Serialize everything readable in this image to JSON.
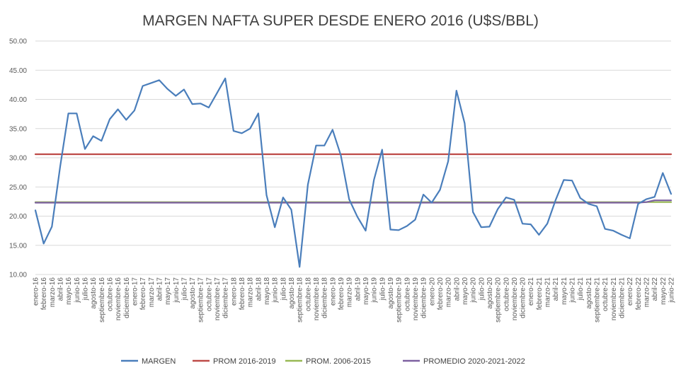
{
  "chart_data": {
    "type": "line",
    "title": "MARGEN NAFTA SUPER DESDE ENERO 2016 (U$S/BBL)",
    "xlabel": "",
    "ylabel": "",
    "ylim": [
      10,
      50
    ],
    "yticks": [
      "10.00",
      "15.00",
      "20.00",
      "25.00",
      "30.00",
      "35.00",
      "40.00",
      "45.00",
      "50.00"
    ],
    "grid": true,
    "legend_position": "bottom",
    "categories": [
      "enero-16",
      "febrero-16",
      "marzo-16",
      "abril-16",
      "mayo-16",
      "junio-16",
      "julio-16",
      "agosto-16",
      "septiembre-16",
      "octubre-16",
      "noviembre-16",
      "diciembre-16",
      "enero-17",
      "febrero-17",
      "marzo-17",
      "abril-17",
      "mayo-17",
      "junio-17",
      "julio-17",
      "agosto-17",
      "septiembre-17",
      "octubre-17",
      "noviembre-17",
      "diciembre-17",
      "enero-18",
      "febrero-18",
      "marzo-18",
      "abril-18",
      "mayo-18",
      "junio-18",
      "julio-18",
      "agosto-18",
      "septiembre-18",
      "octubre-18",
      "noviembre-18",
      "diciembre-18",
      "enero-19",
      "febrero-19",
      "marzo-19",
      "abril-19",
      "mayo-19",
      "junio-19",
      "julio-19",
      "agosto-19",
      "septiembre-19",
      "octubre-19",
      "noviembre-19",
      "diciembre-19",
      "enero-20",
      "febrero-20",
      "marzo-20",
      "abril-20",
      "mayo-20",
      "junio-20",
      "julio-20",
      "agosto-20",
      "septiembre-20",
      "octubre-20",
      "noviembre-20",
      "diciembre-20",
      "enero-21",
      "febrero-21",
      "marzo-21",
      "abril-21",
      "mayo-21",
      "junio-21",
      "julio-21",
      "agosto-21",
      "septiembre-21",
      "octubre-21",
      "noviembre-21",
      "diciembre-21",
      "enero-22",
      "febrero-22",
      "marzo-22",
      "abril-22",
      "mayo-22",
      "junio-22"
    ],
    "series": [
      {
        "name": "MARGEN",
        "color": "#4a7ebb",
        "values": [
          21.0,
          15.3,
          18.2,
          28.5,
          37.6,
          37.6,
          31.5,
          33.7,
          32.9,
          36.6,
          38.3,
          36.5,
          38.1,
          42.3,
          42.8,
          43.3,
          41.8,
          40.6,
          41.7,
          39.2,
          39.3,
          38.6,
          41.1,
          43.6,
          34.6,
          34.2,
          35.0,
          37.6,
          23.6,
          18.1,
          23.2,
          21.1,
          11.3,
          25.4,
          32.1,
          32.1,
          34.8,
          30.4,
          22.9,
          19.9,
          17.5,
          26.2,
          31.4,
          17.7,
          17.6,
          18.3,
          19.4,
          23.7,
          22.3,
          24.5,
          29.4,
          41.5,
          35.9,
          20.7,
          18.1,
          18.2,
          21.2,
          23.2,
          22.8,
          18.7,
          18.6,
          16.8,
          18.7,
          22.7,
          26.2,
          26.1,
          23.1,
          22.1,
          21.7,
          17.8,
          17.5,
          16.8,
          16.2,
          22.1,
          22.9,
          23.3,
          27.4,
          23.8
        ]
      },
      {
        "name": "PROM 2016-2019",
        "color": "#be4b48",
        "values": [
          30.6,
          30.6,
          30.6,
          30.6,
          30.6,
          30.6,
          30.6,
          30.6,
          30.6,
          30.6,
          30.6,
          30.6,
          30.6,
          30.6,
          30.6,
          30.6,
          30.6,
          30.6,
          30.6,
          30.6,
          30.6,
          30.6,
          30.6,
          30.6,
          30.6,
          30.6,
          30.6,
          30.6,
          30.6,
          30.6,
          30.6,
          30.6,
          30.6,
          30.6,
          30.6,
          30.6,
          30.6,
          30.6,
          30.6,
          30.6,
          30.6,
          30.6,
          30.6,
          30.6,
          30.6,
          30.6,
          30.6,
          30.6,
          30.6,
          30.6,
          30.6,
          30.6,
          30.6,
          30.6,
          30.6,
          30.6,
          30.6,
          30.6,
          30.6,
          30.6,
          30.6,
          30.6,
          30.6,
          30.6,
          30.6,
          30.6,
          30.6,
          30.6,
          30.6,
          30.6,
          30.6,
          30.6,
          30.6,
          30.6,
          30.6,
          30.6,
          30.6,
          30.6
        ]
      },
      {
        "name": "PROM. 2006-2015",
        "color": "#98b954",
        "values": [
          22.4,
          22.4,
          22.4,
          22.4,
          22.4,
          22.4,
          22.4,
          22.4,
          22.4,
          22.4,
          22.4,
          22.4,
          22.4,
          22.4,
          22.4,
          22.4,
          22.4,
          22.4,
          22.4,
          22.4,
          22.4,
          22.4,
          22.4,
          22.4,
          22.4,
          22.4,
          22.4,
          22.4,
          22.4,
          22.4,
          22.4,
          22.4,
          22.4,
          22.4,
          22.4,
          22.4,
          22.4,
          22.4,
          22.4,
          22.4,
          22.4,
          22.4,
          22.4,
          22.4,
          22.4,
          22.4,
          22.4,
          22.4,
          22.4,
          22.4,
          22.4,
          22.4,
          22.4,
          22.4,
          22.4,
          22.4,
          22.4,
          22.4,
          22.4,
          22.4,
          22.4,
          22.4,
          22.4,
          22.4,
          22.4,
          22.4,
          22.4,
          22.4,
          22.4,
          22.4,
          22.4,
          22.4,
          22.4,
          22.4,
          22.4,
          22.4,
          22.4,
          22.4
        ]
      },
      {
        "name": "PROMEDIO 2020-2021-2022",
        "color": "#7d60a0",
        "values": [
          22.3,
          22.3,
          22.3,
          22.3,
          22.3,
          22.3,
          22.3,
          22.3,
          22.3,
          22.3,
          22.3,
          22.3,
          22.3,
          22.3,
          22.3,
          22.3,
          22.3,
          22.3,
          22.3,
          22.3,
          22.3,
          22.3,
          22.3,
          22.3,
          22.3,
          22.3,
          22.3,
          22.3,
          22.3,
          22.3,
          22.3,
          22.3,
          22.3,
          22.3,
          22.3,
          22.3,
          22.3,
          22.3,
          22.3,
          22.3,
          22.3,
          22.3,
          22.3,
          22.3,
          22.3,
          22.3,
          22.3,
          22.3,
          22.3,
          22.3,
          22.3,
          22.3,
          22.3,
          22.3,
          22.3,
          22.3,
          22.3,
          22.3,
          22.3,
          22.3,
          22.3,
          22.3,
          22.3,
          22.3,
          22.3,
          22.3,
          22.3,
          22.3,
          22.3,
          22.3,
          22.3,
          22.3,
          22.3,
          22.3,
          22.4,
          22.7,
          22.7,
          22.7
        ]
      }
    ]
  }
}
